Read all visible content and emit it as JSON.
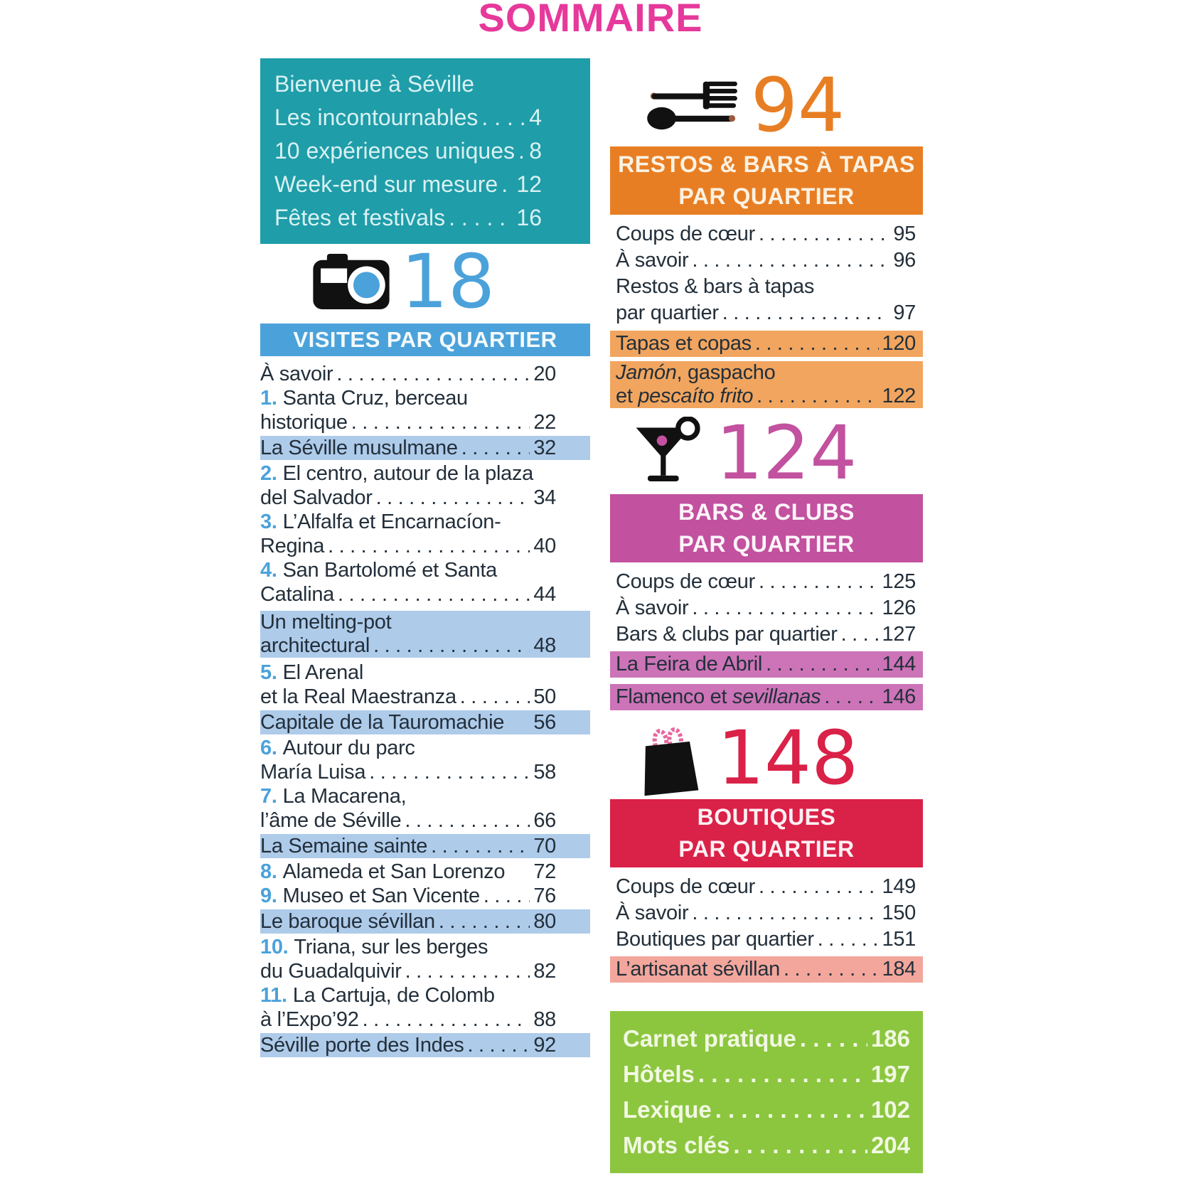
{
  "page_title": "SOMMAIRE",
  "colors": {
    "pink_title": "#E6399B",
    "teal": "#1F9DA9",
    "blue": "#4BA2DA",
    "orange": "#E87E23",
    "magenta": "#C2519F",
    "red": "#DA2148",
    "green": "#8CC63F",
    "hl_blue": "#AECBEA",
    "hl_orange": "#F1A55F",
    "hl_pink": "#CC74B7",
    "hl_salmon": "#F3A69C",
    "text_dark": "#232F3A",
    "teal_box_text": "#D9F1F2",
    "green_box_text": "#F1F8E2"
  },
  "left": {
    "intro_box": {
      "rows": [
        {
          "label": "Bienvenue à Séville"
        },
        {
          "label": "Les incontournables",
          "dots": true,
          "page": "4"
        },
        {
          "label": "10 expériences uniques",
          "dots": true,
          "page": "8"
        },
        {
          "label": "Week-end sur mesure",
          "dots": true,
          "page": "12"
        },
        {
          "label": "Fêtes et festivals",
          "dots": true,
          "page": "16"
        }
      ]
    },
    "section": {
      "icon": "camera-icon",
      "number": "18",
      "number_color": "blue",
      "ribbon_lines": [
        "VISITES PAR QUARTIER"
      ]
    },
    "rows": [
      {
        "label": "À savoir",
        "dots": true,
        "page": "20"
      },
      {
        "pre": "1.",
        "label": "Santa Cruz, berceau"
      },
      {
        "label": "historique",
        "dots": true,
        "page": "22"
      },
      {
        "label": "La Séville musulmane",
        "dots": true,
        "page": "32",
        "highlight": "blue",
        "margin_top": 2
      },
      {
        "pre": "2.",
        "label": "El centro, autour de la plaza",
        "margin_top": 2
      },
      {
        "label": "del Salvador",
        "dots": true,
        "page": "34"
      },
      {
        "pre": "3.",
        "label": "L’Alfalfa et Encarnacíon-"
      },
      {
        "label": "Regina",
        "dots": true,
        "page": "40"
      },
      {
        "pre": "4.",
        "label": "San Bartolomé et Santa"
      },
      {
        "label": "Catalina",
        "dots": true,
        "page": "44"
      },
      {
        "label": "Un melting-pot",
        "highlight": "blue",
        "tight": true,
        "margin_top": 6
      },
      {
        "label": "architectural",
        "dots": true,
        "page": "48",
        "highlight": "blue",
        "tight": true
      },
      {
        "pre": "5.",
        "label": "El Arenal",
        "margin_top": 4
      },
      {
        "label": "et la Real Maestranza",
        "dots": true,
        "page": "50"
      },
      {
        "label": "Capitale de la Tauromachie",
        "page": "56",
        "highlight": "blue",
        "margin_top": 2
      },
      {
        "pre": "6.",
        "label": "Autour du parc",
        "margin_top": 2
      },
      {
        "label": "María Luisa",
        "dots": true,
        "page": "58"
      },
      {
        "pre": "7.",
        "label": "La Macarena,"
      },
      {
        "label": "l’âme de Séville",
        "dots": true,
        "page": "66"
      },
      {
        "label": "La Semaine sainte",
        "dots": true,
        "page": "70",
        "highlight": "blue",
        "margin_top": 2
      },
      {
        "pre": "8.",
        "label": "Alameda et San Lorenzo",
        "page": "72",
        "margin_top": 2
      },
      {
        "pre": "9.",
        "label": "Museo et San Vicente",
        "dots": true,
        "page": "76"
      },
      {
        "label": "Le baroque sévillan",
        "dots": true,
        "page": "80",
        "highlight": "blue",
        "margin_top": 2
      },
      {
        "pre": "10.",
        "label": "Triana, sur les berges",
        "margin_top": 2
      },
      {
        "label": "du Guadalquivir",
        "dots": true,
        "page": "82"
      },
      {
        "pre": "11.",
        "label": "La Cartuja, de Colomb"
      },
      {
        "label": "à l’Expo’92",
        "dots": true,
        "page": "88"
      },
      {
        "label": "Séville porte des Indes",
        "dots": true,
        "page": "92",
        "highlight": "blue",
        "margin_top": 2
      }
    ]
  },
  "right": {
    "sections": [
      {
        "icon": "cutlery-icon",
        "number": "94",
        "number_color": "orange",
        "ribbon_lines": [
          "RESTOS & BARS À TAPAS",
          "PAR QUARTIER"
        ],
        "ribbon_bg": "orange",
        "ribbon_text_color": "#FBF2E3",
        "rows": [
          {
            "label": "Coups de cœur",
            "dots": true,
            "page": "95"
          },
          {
            "label": "À savoir",
            "dots": true,
            "page": "96"
          },
          {
            "label": "Restos & bars à tapas"
          },
          {
            "label": "par quartier",
            "dots": true,
            "page": "97"
          },
          {
            "label": "Tapas et copas",
            "dots": true,
            "page": "120",
            "highlight": "orange",
            "margin_top": 6
          },
          {
            "parts": [
              {
                "t": "Jamón",
                "i": true
              },
              {
                "t": ", gaspacho"
              }
            ],
            "highlight": "orange",
            "tight": true,
            "margin_top": 6
          },
          {
            "parts": [
              {
                "t": "et "
              },
              {
                "t": "pescaíto frito",
                "i": true
              }
            ],
            "dots": true,
            "page": "122",
            "highlight": "orange",
            "tight": true
          }
        ]
      },
      {
        "icon": "cocktail-icon",
        "number": "124",
        "number_color": "magenta",
        "ribbon_lines": [
          "BARS & CLUBS",
          "PAR QUARTIER"
        ],
        "ribbon_bg": "magenta",
        "ribbon_text_color": "#FDF4FA",
        "rows": [
          {
            "label": "Coups de cœur",
            "dots": true,
            "page": "125"
          },
          {
            "label": "À savoir",
            "dots": true,
            "page": "126"
          },
          {
            "label": "Bars & clubs par quartier",
            "dots": true,
            "page": "127"
          },
          {
            "label": "La Feira de Abril",
            "dots": true,
            "page": "144",
            "highlight": "pink",
            "margin_top": 5
          },
          {
            "parts": [
              {
                "t": "Flamenco et "
              },
              {
                "t": "sevillanas",
                "i": true
              }
            ],
            "dots": true,
            "page": "146",
            "highlight": "pink",
            "margin_top": 9
          }
        ]
      },
      {
        "icon": "shopping-bag-icon",
        "number": "148",
        "number_color": "red",
        "ribbon_lines": [
          "BOUTIQUES",
          "PAR QUARTIER"
        ],
        "ribbon_bg": "red",
        "ribbon_text_color": "#FDF0F3",
        "rows": [
          {
            "label": "Coups de cœur",
            "dots": true,
            "page": "149"
          },
          {
            "label": "À savoir",
            "dots": true,
            "page": "150"
          },
          {
            "label": "Boutiques par quartier",
            "dots": true,
            "page": "151"
          },
          {
            "label": "L’artisanat sévillan",
            "dots": true,
            "page": "184",
            "highlight": "salmon",
            "margin_top": 5
          }
        ]
      }
    ],
    "green_box": {
      "rows": [
        {
          "label": "Carnet pratique",
          "dots": true,
          "page": "186"
        },
        {
          "label": "Hôtels",
          "dots": true,
          "page": "197"
        },
        {
          "label": "Lexique",
          "dots": true,
          "page": "102"
        },
        {
          "label": "Mots clés",
          "dots": true,
          "page": "204"
        }
      ]
    }
  }
}
